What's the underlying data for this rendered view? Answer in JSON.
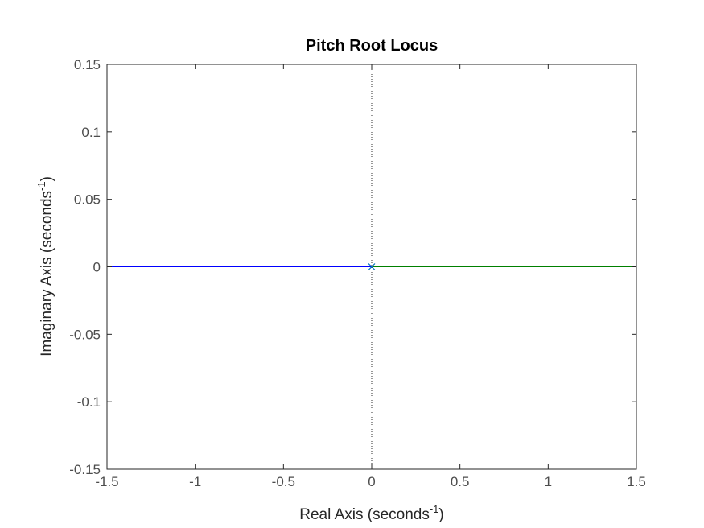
{
  "chart_data": {
    "type": "line",
    "title": "Pitch Root Locus",
    "xlabel": "Real Axis (seconds",
    "ylabel": "Imaginary Axis (seconds",
    "unit_exponent": "-1",
    "label_close": ")",
    "xlim": [
      -1.5,
      1.5
    ],
    "ylim": [
      -0.15,
      0.15
    ],
    "x_ticks": [
      -1.5,
      -1,
      -0.5,
      0,
      0.5,
      1,
      1.5
    ],
    "x_tick_labels": [
      "-1.5",
      "-1",
      "-0.5",
      "0",
      "0.5",
      "1",
      "1.5"
    ],
    "y_ticks": [
      -0.15,
      -0.1,
      -0.05,
      0,
      0.05,
      0.1,
      0.15
    ],
    "y_tick_labels": [
      "-0.15",
      "-0.1",
      "-0.05",
      "0",
      "0.05",
      "0.1",
      "0.15"
    ],
    "grid": false,
    "series": [
      {
        "color": "#0000ff",
        "x": [
          0,
          -1.5
        ],
        "y": [
          0,
          0
        ]
      },
      {
        "color": "#008000",
        "x": [
          0,
          1.5
        ],
        "y": [
          0,
          0
        ]
      }
    ],
    "poles": [
      {
        "x": 0,
        "y": 0,
        "marker": "x",
        "color": "#0072bd"
      }
    ],
    "reference_line": {
      "x": 0,
      "style": "dotted",
      "color": "#000000"
    }
  }
}
